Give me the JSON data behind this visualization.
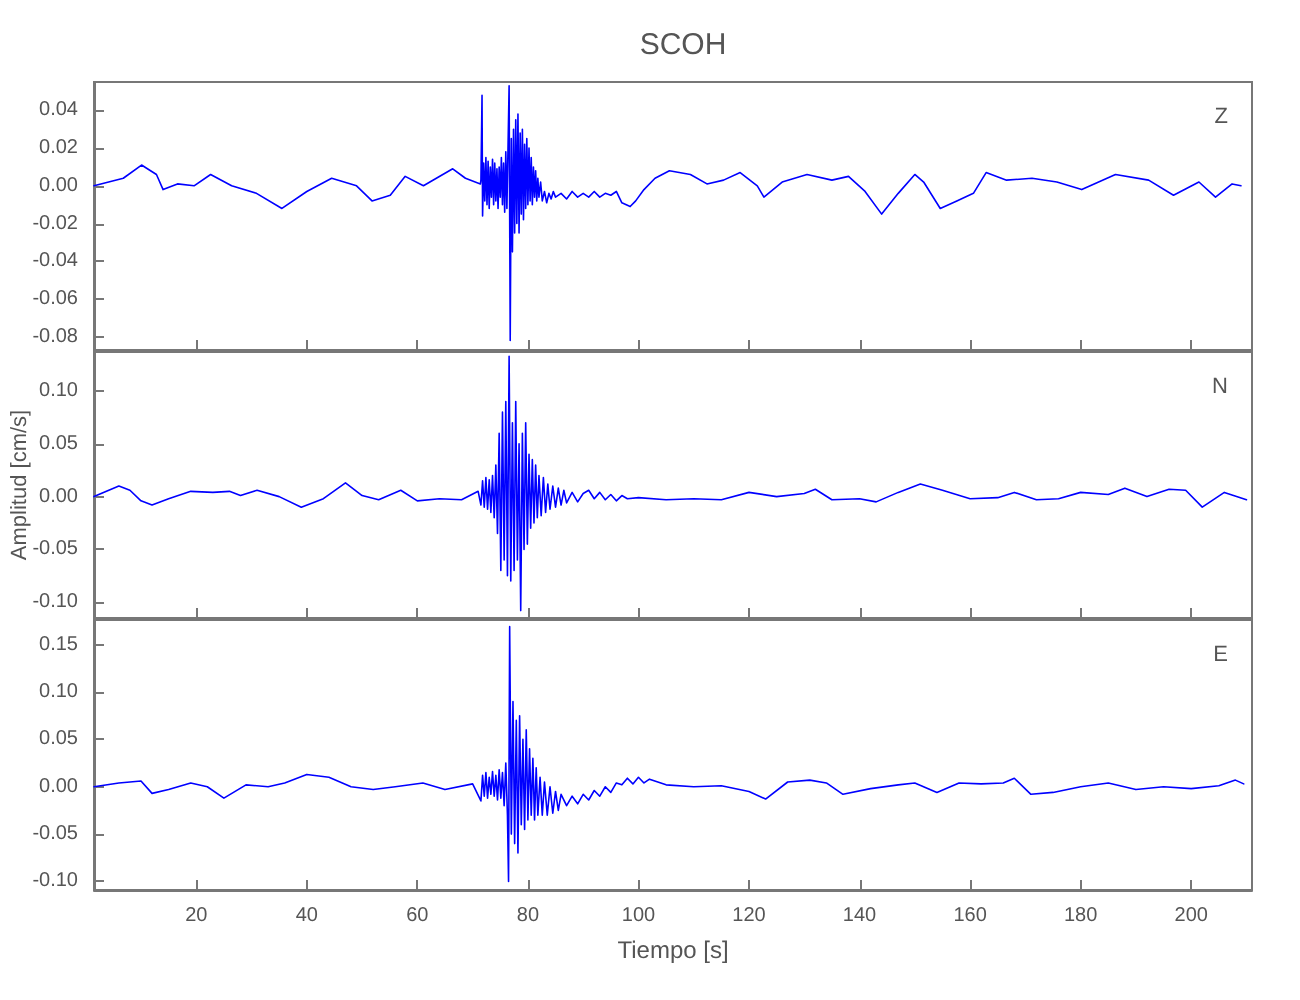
{
  "chart_data": [
    {
      "type": "line",
      "title": "SCOH",
      "annotations": [
        "Z"
      ],
      "xlim": [
        1.5,
        211
      ],
      "xticks": [
        20,
        40,
        60,
        80,
        100,
        120,
        140,
        160,
        180,
        200
      ],
      "ylim": [
        -0.087,
        0.055
      ],
      "yticks": [
        {
          "value": -0.08,
          "label": "-0.08"
        },
        {
          "value": -0.06,
          "label": "-0.06"
        },
        {
          "value": -0.04,
          "label": "-0.04"
        },
        {
          "value": -0.02,
          "label": "-0.02"
        },
        {
          "value": 0,
          "label": "0.00"
        },
        {
          "value": 0.02,
          "label": "0.02"
        },
        {
          "value": 0.04,
          "label": "0.04"
        }
      ],
      "tick_labels": "y",
      "marker": "none",
      "line_style": "solid",
      "series": [
        {
          "color": "#0000ff",
          "x": [
            1.5,
            6.8,
            10.1,
            12.8,
            14,
            16.6,
            19.6,
            22.6,
            26.4,
            30.9,
            35.5,
            40,
            44.5,
            49,
            51.8,
            55.1,
            57.8,
            61.1,
            66.4,
            68.7,
            71.4,
            71.5,
            71.7,
            71.8,
            72.0,
            72.2,
            72.4,
            72.6,
            72.8,
            73.0,
            73.2,
            73.4,
            73.6,
            73.8,
            74.0,
            74.2,
            74.4,
            74.6,
            74.8,
            75.0,
            75.2,
            75.4,
            75.6,
            75.8,
            76.0,
            76.2,
            76.4,
            76.6,
            76.8,
            77.0,
            77.2,
            77.4,
            77.6,
            77.8,
            78.0,
            78.2,
            78.4,
            78.6,
            78.8,
            79.0,
            79.2,
            79.4,
            79.6,
            79.8,
            80.0,
            80.2,
            80.4,
            80.6,
            80.8,
            81.0,
            81.2,
            81.4,
            81.6,
            81.8,
            82.0,
            82.3,
            82.6,
            83.0,
            83.4,
            83.8,
            84.2,
            84.6,
            85,
            86,
            87,
            88,
            89,
            90,
            91,
            92,
            93,
            94,
            95,
            96,
            97,
            98.5,
            99.5,
            101,
            103,
            105.6,
            109.4,
            112.4,
            115.4,
            118.4,
            121.5,
            122.7,
            126,
            130.5,
            135,
            138,
            141,
            144,
            147,
            150,
            151.6,
            154.6,
            157.6,
            160.6,
            162.9,
            166.6,
            171.2,
            175.7,
            180.2,
            186.3,
            192.3,
            196.8,
            201.4,
            204.4,
            207.4,
            209
          ],
          "values": [
            0,
            0.004,
            0.011,
            0.006,
            -0.002,
            0.001,
            0,
            0.006,
            0,
            -0.004,
            -0.012,
            -0.003,
            0.004,
            0,
            -0.008,
            -0.005,
            0.005,
            0,
            0.009,
            0.004,
            0.001,
            0.003,
            0.048,
            -0.016,
            0.012,
            -0.008,
            0.015,
            -0.01,
            0.013,
            -0.012,
            0.01,
            -0.006,
            0.014,
            -0.01,
            0.012,
            -0.008,
            0.009,
            -0.012,
            0.01,
            -0.006,
            0.015,
            -0.01,
            0.012,
            -0.014,
            0.018,
            -0.012,
            0.02,
            0.053,
            -0.082,
            0.025,
            -0.035,
            0.03,
            -0.025,
            0.035,
            -0.02,
            0.038,
            -0.025,
            0.028,
            -0.015,
            0.03,
            -0.018,
            0.022,
            -0.012,
            0.025,
            -0.01,
            0.02,
            -0.008,
            0.015,
            -0.01,
            0.01,
            -0.006,
            0.008,
            -0.008,
            0.004,
            -0.006,
            0.002,
            -0.008,
            -0.003,
            -0.009,
            -0.004,
            -0.007,
            -0.003,
            -0.006,
            -0.004,
            -0.007,
            -0.003,
            -0.006,
            -0.004,
            -0.006,
            -0.003,
            -0.006,
            -0.004,
            -0.005,
            -0.003,
            -0.009,
            -0.011,
            -0.008,
            -0.002,
            0.004,
            0.008,
            0.006,
            0.001,
            0.003,
            0.007,
            0,
            -0.006,
            0.002,
            0.006,
            0.003,
            0.005,
            -0.003,
            -0.015,
            -0.004,
            0.006,
            0.002,
            -0.012,
            -0.008,
            -0.004,
            0.007,
            0.003,
            0.004,
            0.002,
            -0.002,
            0.006,
            0.003,
            -0.005,
            0.002,
            -0.006,
            0.001,
            0
          ]
        }
      ]
    },
    {
      "type": "line",
      "ylabel": "Amplitud [cm/s]",
      "annotations": [
        "N"
      ],
      "xlim": [
        1.5,
        211
      ],
      "xticks": [
        20,
        40,
        60,
        80,
        100,
        120,
        140,
        160,
        180,
        200
      ],
      "ylim": [
        -0.115,
        0.137
      ],
      "yticks": [
        {
          "value": -0.1,
          "label": "-0.10"
        },
        {
          "value": -0.05,
          "label": "-0.05"
        },
        {
          "value": 0,
          "label": "0.00"
        },
        {
          "value": 0.05,
          "label": "0.05"
        },
        {
          "value": 0.1,
          "label": "0.10"
        }
      ],
      "tick_labels": "y",
      "marker": "none",
      "line_style": "solid",
      "series": [
        {
          "color": "#0000ff",
          "x": [
            1.5,
            6,
            8,
            10,
            12,
            15,
            19,
            23,
            26,
            28,
            31,
            35,
            39,
            43,
            47,
            50,
            53,
            57,
            60,
            64,
            68,
            71,
            71.5,
            71.8,
            72.1,
            72.4,
            72.7,
            73.0,
            73.3,
            73.6,
            73.9,
            74.2,
            74.5,
            74.8,
            75.1,
            75.4,
            75.7,
            76.0,
            76.3,
            76.6,
            76.9,
            77.2,
            77.5,
            77.8,
            78.1,
            78.4,
            78.7,
            79.0,
            79.3,
            79.6,
            79.9,
            80.2,
            80.5,
            80.8,
            81.1,
            81.4,
            81.7,
            82.0,
            82.4,
            82.8,
            83.2,
            83.6,
            84.0,
            84.5,
            85,
            85.5,
            86,
            86.5,
            87,
            88,
            89,
            90,
            91,
            92,
            93,
            94,
            95,
            96,
            97,
            98,
            100,
            105,
            110,
            115,
            120,
            125,
            130,
            132,
            135,
            140,
            143,
            147,
            151,
            155,
            160,
            165,
            168,
            172,
            176,
            180,
            185,
            188,
            192,
            196,
            199,
            202,
            206,
            210
          ],
          "values": [
            0,
            0.01,
            0.006,
            -0.004,
            -0.008,
            -0.002,
            0.005,
            0.004,
            0.005,
            0.001,
            0.006,
            0,
            -0.01,
            -0.002,
            0.013,
            0.001,
            -0.003,
            0.006,
            -0.004,
            -0.002,
            -0.003,
            0.005,
            -0.008,
            0.015,
            -0.01,
            0.018,
            -0.012,
            0.016,
            -0.015,
            0.02,
            -0.02,
            0.03,
            -0.035,
            0.06,
            -0.07,
            0.08,
            -0.06,
            0.09,
            -0.075,
            0.133,
            -0.08,
            0.07,
            -0.07,
            0.09,
            -0.06,
            0.05,
            -0.108,
            0.06,
            -0.05,
            0.07,
            -0.045,
            0.04,
            -0.03,
            0.035,
            -0.025,
            0.03,
            -0.02,
            0.02,
            -0.018,
            0.018,
            -0.015,
            0.012,
            -0.012,
            0.01,
            -0.01,
            0.008,
            -0.008,
            0.006,
            -0.006,
            0.004,
            -0.005,
            0.003,
            0.006,
            -0.002,
            0.004,
            -0.003,
            0.002,
            -0.004,
            0.001,
            -0.002,
            -0.001,
            -0.003,
            -0.002,
            -0.003,
            0.004,
            0,
            0.003,
            0.007,
            -0.003,
            -0.002,
            -0.005,
            0.004,
            0.012,
            0.006,
            -0.002,
            -0.001,
            0.004,
            -0.003,
            -0.002,
            0.004,
            0.002,
            0.008,
            0,
            0.007,
            0.006,
            -0.01,
            0.004,
            -0.003
          ]
        }
      ]
    },
    {
      "type": "line",
      "xlabel": "Tiempo [s]",
      "annotations": [
        "E"
      ],
      "xlim": [
        1.5,
        211
      ],
      "xticks": [
        20,
        40,
        60,
        80,
        100,
        120,
        140,
        160,
        180,
        200
      ],
      "ylim": [
        -0.109,
        0.176
      ],
      "yticks": [
        {
          "value": -0.1,
          "label": "-0.10"
        },
        {
          "value": -0.05,
          "label": "-0.05"
        },
        {
          "value": 0,
          "label": "0.00"
        },
        {
          "value": 0.05,
          "label": "0.05"
        },
        {
          "value": 0.1,
          "label": "0.10"
        },
        {
          "value": 0.15,
          "label": "0.15"
        }
      ],
      "marker": "none",
      "line_style": "solid",
      "series": [
        {
          "color": "#0000ff",
          "x": [
            1.5,
            6,
            10,
            12,
            15,
            19,
            22,
            25,
            29,
            33,
            36,
            40,
            44,
            48,
            52,
            56,
            61,
            65,
            70,
            71.5,
            71.8,
            72.1,
            72.4,
            72.7,
            73.0,
            73.3,
            73.6,
            73.9,
            74.2,
            74.5,
            74.8,
            75.1,
            75.4,
            75.7,
            76.0,
            76.3,
            76.5,
            76.7,
            77.0,
            77.3,
            77.6,
            77.9,
            78.2,
            78.5,
            78.8,
            79.1,
            79.4,
            79.7,
            80.0,
            80.3,
            80.6,
            80.9,
            81.2,
            81.5,
            81.8,
            82.2,
            82.6,
            83.0,
            83.5,
            84,
            84.5,
            85,
            85.5,
            86,
            87,
            88,
            89,
            90,
            91,
            92,
            93,
            94,
            95,
            96,
            97,
            98,
            99,
            100,
            101,
            102,
            105,
            110,
            115,
            120,
            123,
            127,
            131,
            134,
            137,
            142,
            147,
            150,
            154,
            158,
            162,
            166,
            168,
            171,
            175,
            180,
            185,
            190,
            195,
            200,
            205,
            208,
            209.5
          ],
          "values": [
            0,
            0.004,
            0.006,
            -0.007,
            -0.003,
            0.004,
            0,
            -0.012,
            0.002,
            0,
            0.004,
            0.013,
            0.01,
            0,
            -0.003,
            0,
            0.004,
            -0.003,
            0.003,
            -0.015,
            0.012,
            -0.01,
            0.015,
            -0.012,
            0.01,
            -0.008,
            0.016,
            -0.01,
            0.012,
            -0.014,
            0.018,
            -0.012,
            0.015,
            -0.02,
            0.025,
            -0.03,
            -0.1,
            0.169,
            -0.05,
            0.09,
            -0.06,
            0.07,
            -0.07,
            0.075,
            -0.04,
            0.05,
            -0.045,
            0.06,
            -0.035,
            0.04,
            -0.03,
            0.03,
            -0.035,
            0.02,
            -0.03,
            0.01,
            -0.03,
            0.005,
            -0.03,
            0.0,
            -0.028,
            -0.005,
            -0.025,
            -0.008,
            -0.02,
            -0.01,
            -0.018,
            -0.008,
            -0.014,
            -0.004,
            -0.01,
            0,
            -0.006,
            0.004,
            0.002,
            0.009,
            0.003,
            0.01,
            0.004,
            0.008,
            0.002,
            0,
            0.001,
            -0.005,
            -0.013,
            0.005,
            0.007,
            0.004,
            -0.008,
            -0.002,
            0.002,
            0.004,
            -0.006,
            0.004,
            0.003,
            0.004,
            0.009,
            -0.008,
            -0.006,
            0,
            0.004,
            -0.003,
            0,
            -0.002,
            0.001,
            0.007,
            0.003
          ]
        }
      ]
    }
  ]
}
